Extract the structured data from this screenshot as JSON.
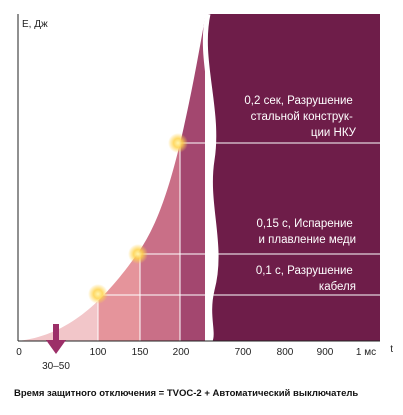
{
  "chart_data": {
    "type": "area",
    "ylabel": "E, Дж",
    "xlabel": "t",
    "left_ticks": [
      "0",
      "30–50",
      "100",
      "150",
      "200"
    ],
    "right_ticks": [
      "700",
      "800",
      "900",
      "1 мс"
    ],
    "annotations": [
      {
        "lines": [
          "0,2 сек, Разрушение",
          "стальной конструк-",
          "ции НКУ"
        ]
      },
      {
        "lines": [
          "0,15 с, Испарение",
          "и плавление меди"
        ]
      },
      {
        "lines": [
          "0,1 с, Разрушение",
          "кабеля"
        ]
      }
    ],
    "highlight": "30–50",
    "curve_points": [
      {
        "t": 0,
        "relative_energy": 0
      },
      {
        "t": 50,
        "relative_energy": 0.07
      },
      {
        "t": 100,
        "relative_energy": 0.18
      },
      {
        "t": 150,
        "relative_energy": 0.35
      },
      {
        "t": 200,
        "relative_energy": 0.62
      },
      {
        "t": 230,
        "relative_energy": 1.0
      }
    ],
    "colors": {
      "band1": "#f2c6c9",
      "band2": "#e5949b",
      "band3": "#c96f87",
      "band4": "#a3476f",
      "panel": "#6e1d49",
      "arrow": "#9c2f68",
      "glow": "#ffd24a"
    }
  },
  "caption": "Время защитного отключения = TVOC-2 + Автоматический выключатель"
}
